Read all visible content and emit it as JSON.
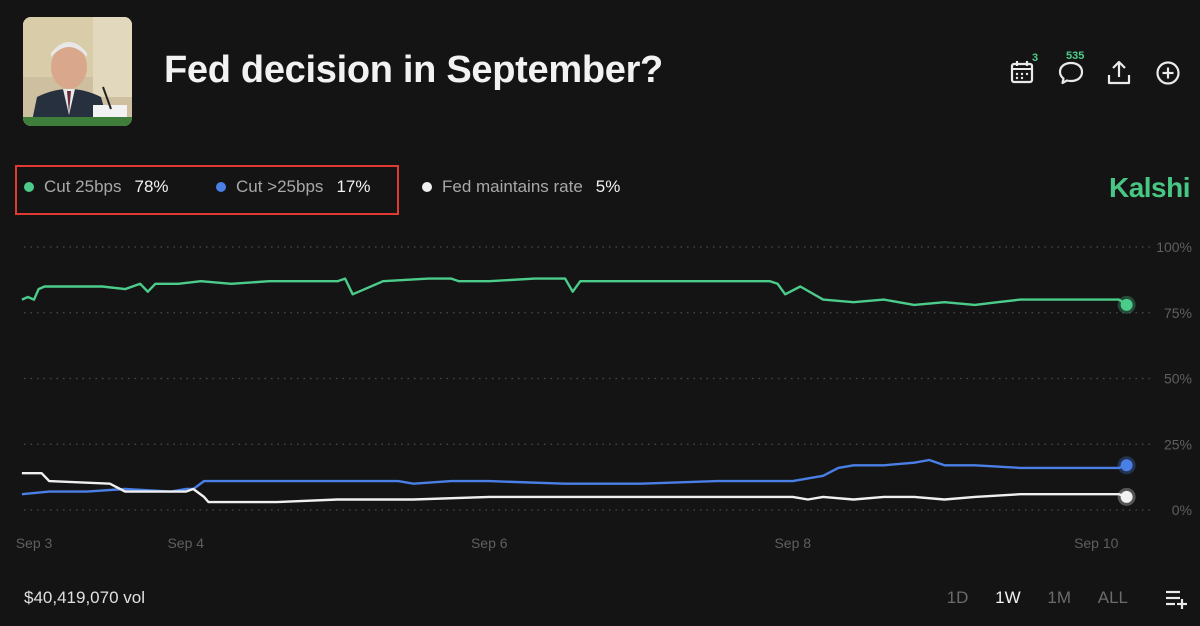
{
  "header": {
    "title": "Fed decision in September?",
    "calendar_count": "3",
    "comments_count": "535"
  },
  "legend": [
    {
      "label": "Cut 25bps",
      "pct": "78%",
      "color": "#4ccc8a"
    },
    {
      "label": "Cut >25bps",
      "pct": "17%",
      "color": "#4a7fe6"
    },
    {
      "label": "Fed maintains rate",
      "pct": "5%",
      "color": "#f0f0f0"
    }
  ],
  "brand": "Kalshi",
  "footer": {
    "volume": "$40,419,070 vol",
    "ranges": [
      "1D",
      "1W",
      "1M",
      "ALL"
    ],
    "active_range": "1W"
  },
  "chart_data": {
    "type": "line",
    "title": "Fed decision in September?",
    "ylim": [
      0,
      100
    ],
    "y_ticks": [
      0,
      25,
      50,
      75,
      100
    ],
    "y_tick_labels": [
      "0%",
      "25%",
      "50%",
      "75%",
      "100%"
    ],
    "x_domain": [
      0,
      7.42
    ],
    "x_ticks": [
      {
        "label": "Sep 3",
        "x": 0
      },
      {
        "label": "Sep 4",
        "x": 1
      },
      {
        "label": "Sep 6",
        "x": 3
      },
      {
        "label": "Sep 8",
        "x": 5
      },
      {
        "label": "Sep 10",
        "x": 7
      }
    ],
    "series": [
      {
        "name": "Cut 25bps",
        "color": "#4ccc8a",
        "x": [
          -0.08,
          -0.04,
          0.0,
          0.03,
          0.07,
          0.15,
          0.25,
          0.45,
          0.6,
          0.7,
          0.75,
          0.8,
          0.85,
          0.95,
          1.1,
          1.3,
          1.55,
          1.8,
          2.0,
          2.05,
          2.1,
          2.3,
          2.6,
          2.75,
          2.8,
          3.0,
          3.3,
          3.5,
          3.55,
          3.6,
          4.0,
          4.5,
          4.85,
          4.9,
          4.95,
          5.05,
          5.2,
          5.4,
          5.6,
          5.8,
          6.0,
          6.2,
          6.35,
          6.5,
          6.7,
          7.0,
          7.15,
          7.2
        ],
        "y": [
          80,
          81,
          80,
          84,
          85,
          85,
          85,
          85,
          84,
          86,
          83,
          86,
          86,
          86,
          87,
          86,
          87,
          87,
          87,
          88,
          82,
          87,
          88,
          88,
          87,
          87,
          88,
          88,
          83,
          87,
          87,
          87,
          87,
          86,
          82,
          85,
          80,
          79,
          80,
          78,
          79,
          78,
          79,
          80,
          80,
          80,
          80,
          78
        ]
      },
      {
        "name": "Cut >25bps",
        "color": "#4a7fe6",
        "x": [
          -0.08,
          0.1,
          0.35,
          0.6,
          0.9,
          1.0,
          1.05,
          1.12,
          1.3,
          1.6,
          2.0,
          2.4,
          2.5,
          2.75,
          3.0,
          3.5,
          4.0,
          4.5,
          5.0,
          5.1,
          5.2,
          5.3,
          5.4,
          5.6,
          5.8,
          5.9,
          6.0,
          6.2,
          6.5,
          6.7,
          7.0,
          7.15,
          7.2
        ],
        "y": [
          6,
          7,
          7,
          8,
          7,
          8,
          8,
          11,
          11,
          11,
          11,
          11,
          10,
          11,
          11,
          10,
          10,
          11,
          11,
          12,
          13,
          16,
          17,
          17,
          18,
          19,
          17,
          17,
          16,
          16,
          16,
          16,
          17
        ]
      },
      {
        "name": "Fed maintains rate",
        "color": "#f0f0f0",
        "x": [
          -0.08,
          0.05,
          0.1,
          0.5,
          0.6,
          1.0,
          1.05,
          1.12,
          1.15,
          1.3,
          1.6,
          2.0,
          2.5,
          3.0,
          3.5,
          4.0,
          4.5,
          5.0,
          5.1,
          5.2,
          5.4,
          5.6,
          5.8,
          6.0,
          6.2,
          6.5,
          7.0,
          7.15,
          7.2
        ],
        "y": [
          14,
          14,
          11,
          10,
          7,
          7,
          8,
          5,
          3,
          3,
          3,
          4,
          4,
          5,
          5,
          5,
          5,
          5,
          4,
          5,
          4,
          5,
          5,
          4,
          5,
          6,
          6,
          6,
          5
        ]
      }
    ],
    "grid": true
  }
}
